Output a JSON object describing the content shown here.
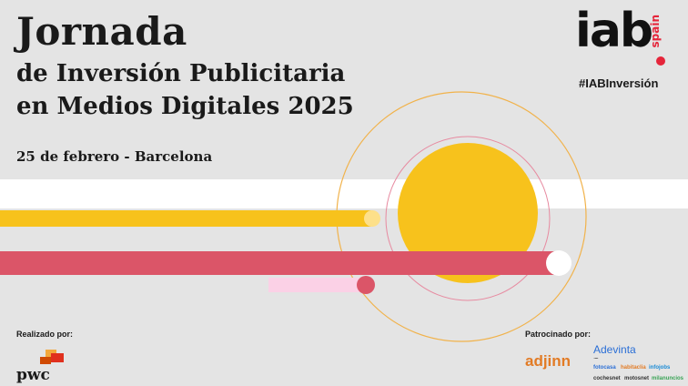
{
  "header": {
    "title_line1": "Jornada",
    "title_line2": "de Inversión Publicitaria",
    "title_line3": "en Medios Digitales 2025",
    "date_location": "25 de febrero - Barcelona"
  },
  "brand": {
    "logo_text": "iab",
    "logo_subtext": "spain",
    "hashtag": "#IABInversión"
  },
  "footer": {
    "made_by_label": "Realizado por:",
    "made_by_logo": "pwc",
    "sponsored_label": "Patrocinado por:",
    "sponsor1": "adjinn",
    "sponsor2": "Adevinta",
    "sponsor2_dots": "....",
    "sponsor_brands_row1": [
      "fotocasa",
      "habitaclia",
      "infojobs"
    ],
    "sponsor_brands_row2": [
      "cochesnet",
      "motosnet",
      "milanuncios"
    ]
  },
  "colors": {
    "yellow": "#f7c21c",
    "red": "#db5568",
    "pink": "#fbd1e6",
    "orange_ring": "#f1b24a",
    "pwc_orange": "#e0301e",
    "iab_red": "#e5253a"
  }
}
